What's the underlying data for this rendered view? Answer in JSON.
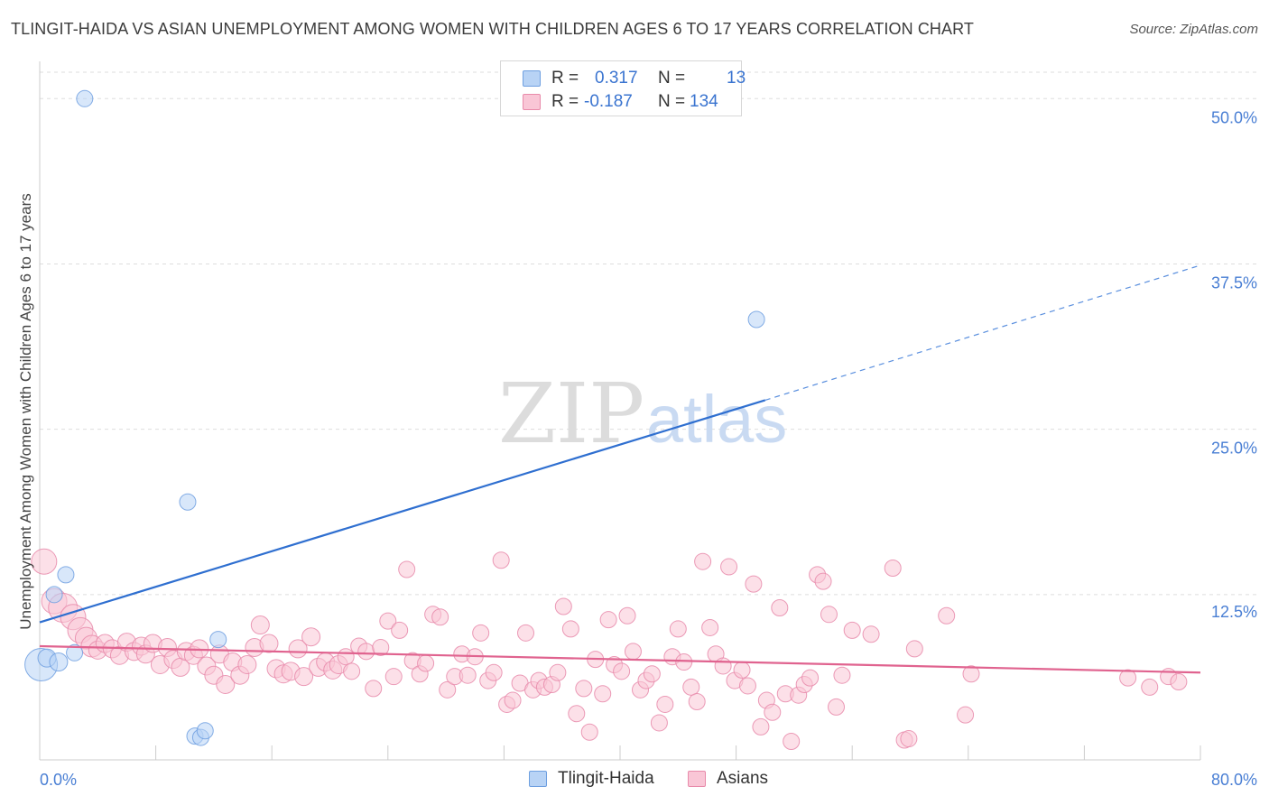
{
  "title": "TLINGIT-HAIDA VS ASIAN UNEMPLOYMENT AMONG WOMEN WITH CHILDREN AGES 6 TO 17 YEARS CORRELATION CHART",
  "source": "Source: ZipAtlas.com",
  "watermark": {
    "zip": "ZIP",
    "atlas": "atlas"
  },
  "legend": {
    "rows": [
      {
        "r_label": "R =",
        "r_value": "0.317",
        "n_label": "N =",
        "n_value": "13",
        "fill": "#b8d3f5",
        "stroke": "#6e9fe0"
      },
      {
        "r_label": "R =",
        "r_value": "-0.187",
        "n_label": "N =",
        "n_value": "134",
        "fill": "#f9c6d6",
        "stroke": "#e88aaa"
      }
    ]
  },
  "bottom_legend": [
    "Tlingit-Haida",
    "Asians"
  ],
  "chart_data": {
    "type": "scatter",
    "title": "TLINGIT-HAIDA VS ASIAN UNEMPLOYMENT AMONG WOMEN WITH CHILDREN AGES 6 TO 17 YEARS CORRELATION CHART",
    "xlabel": "",
    "ylabel": "Unemployment Among Women with Children Ages 6 to 17 years",
    "xlim": [
      0,
      80
    ],
    "ylim": [
      0,
      52
    ],
    "x_tick_labels": [
      "0.0%",
      "80.0%"
    ],
    "y_ticks": [
      12.5,
      25.0,
      37.5,
      50.0
    ],
    "y_tick_labels": [
      "12.5%",
      "25.0%",
      "37.5%",
      "50.0%"
    ],
    "grid": "horizontal dashed",
    "legend_placement": "top-center",
    "series": [
      {
        "name": "Tlingit-Haida",
        "color": "#6e9fe0",
        "fill": "#b8d3f5",
        "points": [
          [
            0.1,
            7.2,
            18
          ],
          [
            0.5,
            7.7,
            10
          ],
          [
            1.3,
            7.4,
            10
          ],
          [
            2.4,
            8.1,
            9
          ],
          [
            1.0,
            12.5,
            9
          ],
          [
            1.8,
            14.0,
            9
          ],
          [
            3.1,
            50.0,
            9
          ],
          [
            10.2,
            19.5,
            9
          ],
          [
            12.3,
            9.1,
            9
          ],
          [
            49.4,
            33.3,
            9
          ],
          [
            10.7,
            1.8,
            9
          ],
          [
            11.1,
            1.7,
            9
          ],
          [
            11.4,
            2.2,
            9
          ]
        ],
        "trend": {
          "x0": 0,
          "y0": 10.4,
          "x1": 50,
          "y1": 27.2,
          "dash_to_x": 80,
          "dash_to_y": 37.4
        }
      },
      {
        "name": "Asians",
        "color": "#e88aaa",
        "fill": "#f9c6d6",
        "points": [
          [
            0.3,
            15.0,
            14
          ],
          [
            1.0,
            12.0,
            14
          ],
          [
            1.6,
            11.5,
            16
          ],
          [
            2.3,
            10.8,
            14
          ],
          [
            2.8,
            9.8,
            14
          ],
          [
            3.2,
            9.2,
            12
          ],
          [
            3.6,
            8.6,
            12
          ],
          [
            4.0,
            8.3,
            10
          ],
          [
            4.5,
            8.8,
            10
          ],
          [
            5.0,
            8.4,
            10
          ],
          [
            5.5,
            7.9,
            10
          ],
          [
            6.0,
            8.9,
            10
          ],
          [
            6.5,
            8.2,
            10
          ],
          [
            7.0,
            8.6,
            10
          ],
          [
            7.3,
            8.0,
            10
          ],
          [
            7.8,
            8.8,
            10
          ],
          [
            8.3,
            7.2,
            10
          ],
          [
            8.8,
            8.5,
            10
          ],
          [
            9.2,
            7.6,
            10
          ],
          [
            9.7,
            7.0,
            10
          ],
          [
            10.1,
            8.2,
            10
          ],
          [
            10.6,
            7.9,
            10
          ],
          [
            11.0,
            8.4,
            10
          ],
          [
            11.5,
            7.1,
            10
          ],
          [
            12.0,
            6.4,
            10
          ],
          [
            12.4,
            8.0,
            10
          ],
          [
            12.8,
            5.7,
            10
          ],
          [
            13.3,
            7.4,
            10
          ],
          [
            13.8,
            6.4,
            10
          ],
          [
            14.3,
            7.2,
            10
          ],
          [
            14.8,
            8.5,
            10
          ],
          [
            15.2,
            10.2,
            10
          ],
          [
            15.8,
            8.8,
            10
          ],
          [
            16.3,
            6.9,
            10
          ],
          [
            16.8,
            6.5,
            10
          ],
          [
            17.3,
            6.7,
            10
          ],
          [
            17.8,
            8.4,
            10
          ],
          [
            18.2,
            6.3,
            10
          ],
          [
            18.7,
            9.3,
            10
          ],
          [
            19.2,
            7.0,
            10
          ],
          [
            19.7,
            7.4,
            10
          ],
          [
            20.2,
            6.8,
            10
          ],
          [
            20.6,
            7.2,
            10
          ],
          [
            21.1,
            7.8,
            9
          ],
          [
            21.5,
            6.7,
            9
          ],
          [
            22.0,
            8.6,
            9
          ],
          [
            22.5,
            8.2,
            9
          ],
          [
            23.0,
            5.4,
            9
          ],
          [
            23.5,
            8.5,
            9
          ],
          [
            24.0,
            10.5,
            9
          ],
          [
            24.4,
            6.3,
            9
          ],
          [
            24.8,
            9.8,
            9
          ],
          [
            25.3,
            14.4,
            9
          ],
          [
            25.7,
            7.5,
            9
          ],
          [
            26.2,
            6.5,
            9
          ],
          [
            26.6,
            7.3,
            9
          ],
          [
            27.1,
            11.0,
            9
          ],
          [
            27.6,
            10.8,
            9
          ],
          [
            28.1,
            5.3,
            9
          ],
          [
            28.6,
            6.3,
            9
          ],
          [
            29.1,
            8.0,
            9
          ],
          [
            29.5,
            6.4,
            9
          ],
          [
            30.0,
            7.8,
            9
          ],
          [
            30.4,
            9.6,
            9
          ],
          [
            30.9,
            6.0,
            9
          ],
          [
            31.3,
            6.6,
            9
          ],
          [
            31.8,
            15.1,
            9
          ],
          [
            32.2,
            4.2,
            9
          ],
          [
            32.6,
            4.5,
            9
          ],
          [
            33.1,
            5.8,
            9
          ],
          [
            33.5,
            9.6,
            9
          ],
          [
            34.0,
            5.3,
            9
          ],
          [
            34.4,
            6.0,
            9
          ],
          [
            34.8,
            5.5,
            9
          ],
          [
            35.3,
            5.7,
            9
          ],
          [
            35.7,
            6.6,
            9
          ],
          [
            36.1,
            11.6,
            9
          ],
          [
            36.6,
            9.9,
            9
          ],
          [
            37.0,
            3.5,
            9
          ],
          [
            37.5,
            5.4,
            9
          ],
          [
            37.9,
            2.1,
            9
          ],
          [
            38.3,
            7.6,
            9
          ],
          [
            38.8,
            5.0,
            9
          ],
          [
            39.2,
            10.6,
            9
          ],
          [
            39.6,
            7.2,
            9
          ],
          [
            40.1,
            6.7,
            9
          ],
          [
            40.5,
            10.9,
            9
          ],
          [
            40.9,
            8.2,
            9
          ],
          [
            41.4,
            5.3,
            9
          ],
          [
            41.8,
            6.0,
            9
          ],
          [
            42.2,
            6.5,
            9
          ],
          [
            42.7,
            2.8,
            9
          ],
          [
            43.1,
            4.2,
            9
          ],
          [
            43.6,
            7.8,
            9
          ],
          [
            44.0,
            9.9,
            9
          ],
          [
            44.4,
            7.4,
            9
          ],
          [
            44.9,
            5.5,
            9
          ],
          [
            45.3,
            4.4,
            9
          ],
          [
            45.7,
            15.0,
            9
          ],
          [
            46.2,
            10.0,
            9
          ],
          [
            46.6,
            8.0,
            9
          ],
          [
            47.1,
            7.1,
            9
          ],
          [
            47.5,
            14.6,
            9
          ],
          [
            47.9,
            6.0,
            9
          ],
          [
            48.4,
            6.8,
            9
          ],
          [
            48.8,
            5.6,
            9
          ],
          [
            49.2,
            13.3,
            9
          ],
          [
            49.7,
            2.5,
            9
          ],
          [
            50.1,
            4.5,
            9
          ],
          [
            50.5,
            3.6,
            9
          ],
          [
            51.0,
            11.5,
            9
          ],
          [
            51.4,
            5.0,
            9
          ],
          [
            51.8,
            1.4,
            9
          ],
          [
            52.3,
            4.9,
            9
          ],
          [
            52.7,
            5.7,
            9
          ],
          [
            53.1,
            6.2,
            9
          ],
          [
            53.6,
            14.0,
            9
          ],
          [
            54.0,
            13.5,
            9
          ],
          [
            54.4,
            11.0,
            9
          ],
          [
            54.9,
            4.0,
            9
          ],
          [
            55.3,
            6.4,
            9
          ],
          [
            56.0,
            9.8,
            9
          ],
          [
            57.3,
            9.5,
            9
          ],
          [
            58.8,
            14.5,
            9
          ],
          [
            59.6,
            1.5,
            9
          ],
          [
            59.9,
            1.6,
            9
          ],
          [
            60.3,
            8.4,
            9
          ],
          [
            62.5,
            10.9,
            9
          ],
          [
            63.8,
            3.4,
            9
          ],
          [
            64.2,
            6.5,
            9
          ],
          [
            75.0,
            6.2,
            9
          ],
          [
            76.5,
            5.5,
            9
          ],
          [
            77.8,
            6.3,
            9
          ],
          [
            78.5,
            5.9,
            9
          ]
        ],
        "trend": {
          "x0": 0,
          "y0": 8.6,
          "x1": 80,
          "y1": 6.6
        }
      }
    ]
  }
}
